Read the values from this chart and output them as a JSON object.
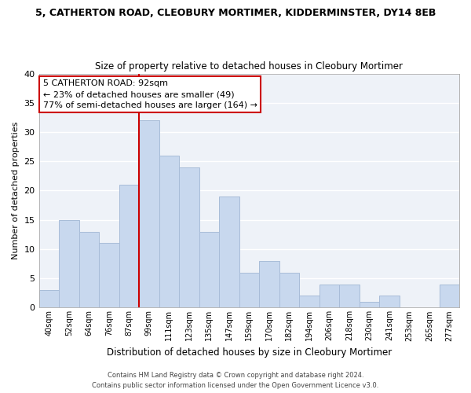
{
  "title1": "5, CATHERTON ROAD, CLEOBURY MORTIMER, KIDDERMINSTER, DY14 8EB",
  "title2": "Size of property relative to detached houses in Cleobury Mortimer",
  "xlabel": "Distribution of detached houses by size in Cleobury Mortimer",
  "ylabel": "Number of detached properties",
  "bar_labels": [
    "40sqm",
    "52sqm",
    "64sqm",
    "76sqm",
    "87sqm",
    "99sqm",
    "111sqm",
    "123sqm",
    "135sqm",
    "147sqm",
    "159sqm",
    "170sqm",
    "182sqm",
    "194sqm",
    "206sqm",
    "218sqm",
    "230sqm",
    "241sqm",
    "253sqm",
    "265sqm",
    "277sqm"
  ],
  "bar_values": [
    3,
    15,
    13,
    11,
    21,
    32,
    26,
    24,
    13,
    19,
    6,
    8,
    6,
    2,
    4,
    4,
    1,
    2,
    0,
    0,
    4
  ],
  "bar_color": "#c8d8ee",
  "bar_edge_color": "#a8bcd8",
  "vline_x": 4.5,
  "vline_color": "#cc0000",
  "ylim": [
    0,
    40
  ],
  "yticks": [
    0,
    5,
    10,
    15,
    20,
    25,
    30,
    35,
    40
  ],
  "annotation_title": "5 CATHERTON ROAD: 92sqm",
  "annotation_line1": "← 23% of detached houses are smaller (49)",
  "annotation_line2": "77% of semi-detached houses are larger (164) →",
  "footer1": "Contains HM Land Registry data © Crown copyright and database right 2024.",
  "footer2": "Contains public sector information licensed under the Open Government Licence v3.0.",
  "background_color": "#ffffff",
  "plot_bg_color": "#eef2f8",
  "grid_color": "#ffffff"
}
